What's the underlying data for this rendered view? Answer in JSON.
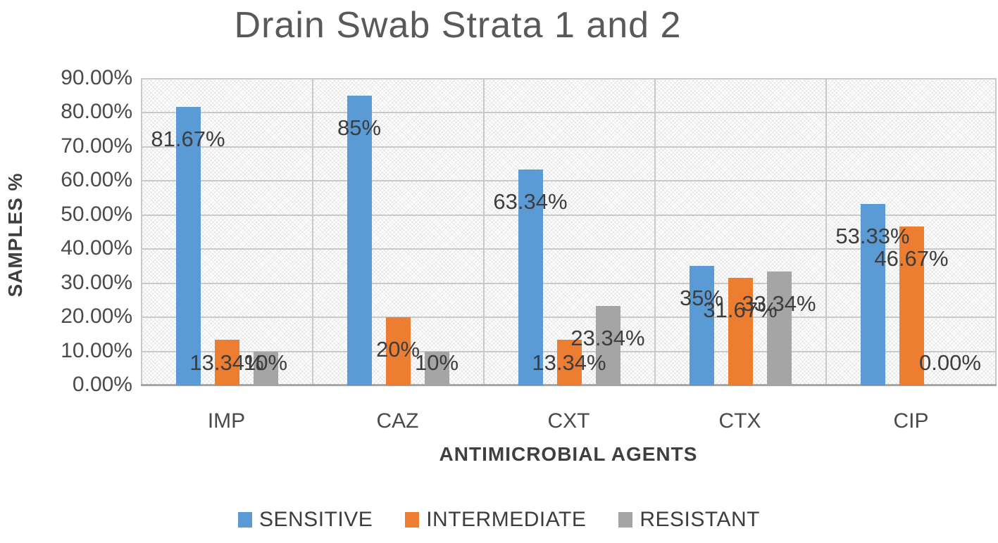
{
  "chart_data": {
    "type": "bar",
    "title": "Drain Swab Strata 1 and 2",
    "xlabel": "ANTIMICROBIAL AGENTS",
    "ylabel": "SAMPLES %",
    "categories": [
      "IMP",
      "CAZ",
      "CXT",
      "CTX",
      "CIP"
    ],
    "series": [
      {
        "name": "SENSITIVE",
        "color": "#5B9BD5",
        "values": [
          81.67,
          85,
          63.34,
          35,
          53.33
        ],
        "labels": [
          "81.67%",
          "85%",
          "63.34%",
          "35%",
          "53.33%"
        ]
      },
      {
        "name": "INTERMEDIATE",
        "color": "#ED7D31",
        "values": [
          13.34,
          20,
          13.34,
          31.67,
          46.67
        ],
        "labels": [
          "13.34%",
          "20%",
          "13.34%",
          "31.67%",
          "46.67%"
        ]
      },
      {
        "name": "RESISTANT",
        "color": "#A5A5A5",
        "values": [
          10,
          10,
          23.34,
          33.34,
          0
        ],
        "labels": [
          "10%",
          "10%",
          "23.34%",
          "33.34%",
          "0.00%"
        ]
      }
    ],
    "ylim": [
      0,
      90
    ],
    "ytick_step": 10,
    "ytick_labels": [
      "0.00%",
      "10.00%",
      "20.00%",
      "30.00%",
      "40.00%",
      "50.00%",
      "60.00%",
      "70.00%",
      "80.00%",
      "90.00%"
    ],
    "grid": true,
    "plot_background": "diagonal-crosshatch",
    "legend_position": "bottom"
  }
}
